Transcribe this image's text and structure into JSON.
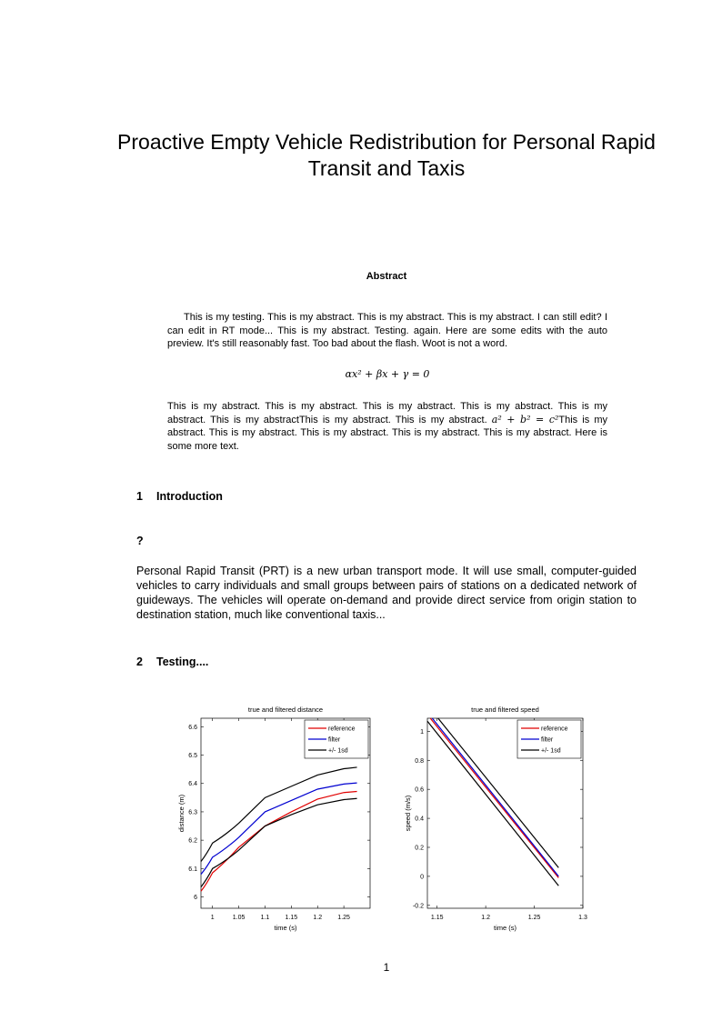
{
  "title": "Proactive Empty Vehicle Redistribution for Personal Rapid Transit and Taxis",
  "abstract": {
    "heading": "Abstract",
    "p1": "This is my testing. This is my abstract. This is my abstract. This is my abstract. I can still edit? I can edit in RT mode... This is my abstract. Testing. again. Here are some edits with the auto preview. It's still reasonably fast. Too bad about the flash. Woot is not a word.",
    "equation": "αx² + βx + γ = 0",
    "p2a": "This is my abstract. This is my abstract. This is my abstract. This is my abstract. This is my abstract. This is my abstractThis is my abstract. This is my abstract. ",
    "p2eq": "a² + b² = c²",
    "p2b": "This is my abstract. This is my abstract. This is my abstract. This is my abstract. This is my abstract. Here is some more text."
  },
  "sections": [
    {
      "num": "1",
      "title": "Introduction"
    },
    {
      "num": "?",
      "title": ""
    },
    {
      "num": "2",
      "title": "Testing...."
    }
  ],
  "intro_text": "Personal Rapid Transit (PRT) is a new urban transport mode. It will use small, computer-guided vehicles to carry individuals and small groups between pairs of stations on a dedicated network of guideways. The vehicles will operate on-demand and provide direct service from origin station to destination station, much like conventional taxis...",
  "page_number": "1",
  "chart_data": [
    {
      "type": "line",
      "title": "true and filtered distance",
      "xlabel": "time (s)",
      "ylabel": "distance (m)",
      "xlim": [
        0.978,
        1.3
      ],
      "ylim": [
        5.96,
        6.63
      ],
      "xticks": [
        1,
        1.05,
        1.1,
        1.15,
        1.2,
        1.25
      ],
      "xtick_labels": [
        "1",
        "1.05",
        "1.1",
        "1.15",
        "1.2",
        "1.25"
      ],
      "yticks": [
        6,
        6.1,
        6.2,
        6.3,
        6.4,
        6.5,
        6.6
      ],
      "ytick_labels": [
        "6",
        "6.1",
        "6.2",
        "6.3",
        "6.4",
        "6.5",
        "6.6"
      ],
      "legend": "top-right",
      "grid": false,
      "x": [
        0.978,
        1,
        1.05,
        1.1,
        1.15,
        1.2,
        1.25,
        1.275
      ],
      "series": [
        {
          "name": "reference",
          "color": "#e00000",
          "values": [
            6.02,
            6.085,
            6.175,
            6.25,
            6.3,
            6.345,
            6.368,
            6.372
          ]
        },
        {
          "name": "filter",
          "color": "#0000d0",
          "values": [
            6.08,
            6.14,
            6.21,
            6.3,
            6.34,
            6.38,
            6.398,
            6.402
          ]
        },
        {
          "name": "+/- 1sd",
          "color": "#000000",
          "values": [
            6.125,
            6.19,
            6.26,
            6.35,
            6.39,
            6.43,
            6.452,
            6.457
          ]
        },
        {
          "name": "",
          "color": "#000000",
          "values": [
            6.035,
            6.1,
            6.165,
            6.25,
            6.29,
            6.325,
            6.343,
            6.347
          ]
        }
      ]
    },
    {
      "type": "line",
      "title": "true and filtered speed",
      "xlabel": "time (s)",
      "ylabel": "speed (m/s)",
      "xlim": [
        1.14,
        1.3
      ],
      "ylim": [
        -0.22,
        1.09
      ],
      "xticks": [
        1.15,
        1.2,
        1.25,
        1.3
      ],
      "xtick_labels": [
        "1.15",
        "1.2",
        "1.25",
        "1.3"
      ],
      "yticks": [
        -0.2,
        0,
        0.2,
        0.4,
        0.6,
        0.8,
        1
      ],
      "ytick_labels": [
        "-0.2",
        "0",
        "0.2",
        "0.4",
        "0.6",
        "0.8",
        "1"
      ],
      "legend": "top-right",
      "grid": false,
      "series": [
        {
          "name": "reference",
          "color": "#e00000",
          "x": [
            1.143,
            1.275
          ],
          "values": [
            1.09,
            -0.01
          ]
        },
        {
          "name": "filter",
          "color": "#0000d0",
          "x": [
            1.145,
            1.275
          ],
          "values": [
            1.09,
            0.0
          ]
        },
        {
          "name": "+/- 1sd",
          "color": "#000000",
          "x": [
            1.151,
            1.275
          ],
          "values": [
            1.09,
            0.06
          ]
        },
        {
          "name": "",
          "color": "#000000",
          "x": [
            1.14,
            1.275
          ],
          "values": [
            1.07,
            -0.065
          ]
        }
      ]
    }
  ]
}
